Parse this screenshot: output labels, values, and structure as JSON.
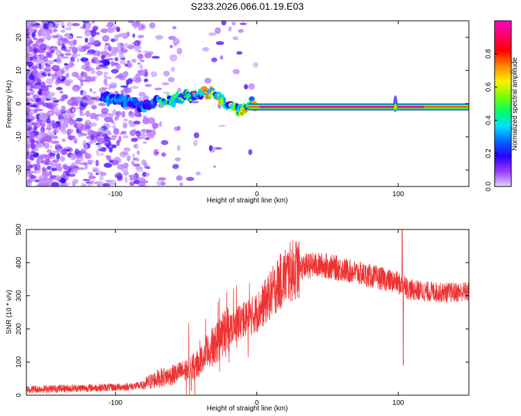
{
  "figure": {
    "title": "S233.2026.066.01.19.E03"
  },
  "chart_data": [
    {
      "type": "heatmap",
      "title": "",
      "xlabel": "Height of straight line (km)",
      "ylabel": "Frequency (Hz)",
      "xlim": [
        -163,
        150
      ],
      "ylim": [
        -25,
        25
      ],
      "xticks": [
        -100,
        0,
        100
      ],
      "yticks": [
        -20,
        -10,
        0,
        10,
        20
      ],
      "xtick_labels": [
        "-100",
        "0",
        "100"
      ],
      "ytick_labels": [
        "-20",
        "-10",
        "0",
        "10",
        "20"
      ],
      "grid": false,
      "colorbar": {
        "label": "Normalized spectral amplitude",
        "range": [
          0,
          1
        ],
        "ticks": [
          "0.0",
          "0.2",
          "0.4",
          "0.6",
          "0.8"
        ],
        "colormap": [
          "#e0d4ff",
          "#9a3cff",
          "#2a00ff",
          "#0066ff",
          "#00e0ff",
          "#00ff66",
          "#7dff00",
          "#ffee00",
          "#ff8800",
          "#ff0000",
          "#ff0066",
          "#ff00c8"
        ]
      },
      "ridge": {
        "name": "signal frequency",
        "x": [
          -100,
          -90,
          -80,
          -70,
          -60,
          -50,
          -40,
          -33,
          -28,
          -24,
          -20,
          -15,
          -12,
          -8,
          -4,
          0,
          10,
          20,
          40,
          60,
          80,
          96,
          100,
          120,
          140,
          150
        ],
        "y": [
          1.5,
          0.5,
          -1,
          1,
          1,
          2,
          3,
          3.5,
          2,
          0,
          -0.5,
          -1.5,
          -2.5,
          -1,
          0.5,
          -1,
          -1,
          -1,
          -1,
          -1,
          -1,
          -1,
          -1,
          -1,
          -1.5,
          -1.5
        ]
      }
    },
    {
      "type": "line",
      "title": "",
      "xlabel": "Height of straight line (km)",
      "ylabel": "SNR (10 * v/v)",
      "xlim": [
        -163,
        150
      ],
      "ylim": [
        0,
        500
      ],
      "xticks": [
        -100,
        0,
        100
      ],
      "yticks": [
        0,
        100,
        200,
        300,
        400,
        500
      ],
      "xtick_labels": [
        "-100",
        "0",
        "100"
      ],
      "ytick_labels": [
        "0",
        "100",
        "200",
        "300",
        "400",
        "500"
      ],
      "grid": false,
      "series": [
        {
          "name": "SNR",
          "color": "#ee3333",
          "x": [
            -163,
            -150,
            -140,
            -130,
            -120,
            -110,
            -100,
            -90,
            -80,
            -76,
            -70,
            -60,
            -50,
            -40,
            -35,
            -30,
            -25,
            -20,
            -15,
            -10,
            -5,
            0,
            5,
            10,
            15,
            20,
            25,
            30,
            35,
            40,
            45,
            50,
            55,
            60,
            65,
            70,
            75,
            80,
            85,
            90,
            95,
            100,
            101,
            102,
            103,
            104,
            105,
            110,
            115,
            120,
            125,
            130,
            135,
            140,
            145,
            150
          ],
          "y": [
            18,
            19,
            20,
            21,
            22,
            23,
            24,
            26,
            30,
            40,
            50,
            60,
            75,
            100,
            130,
            150,
            175,
            200,
            215,
            225,
            235,
            250,
            275,
            305,
            335,
            360,
            375,
            385,
            390,
            392,
            392,
            390,
            385,
            380,
            375,
            370,
            365,
            360,
            355,
            350,
            345,
            340,
            450,
            90,
            330,
            325,
            322,
            318,
            315,
            312,
            312,
            310,
            310,
            310,
            312,
            312
          ]
        }
      ]
    }
  ]
}
